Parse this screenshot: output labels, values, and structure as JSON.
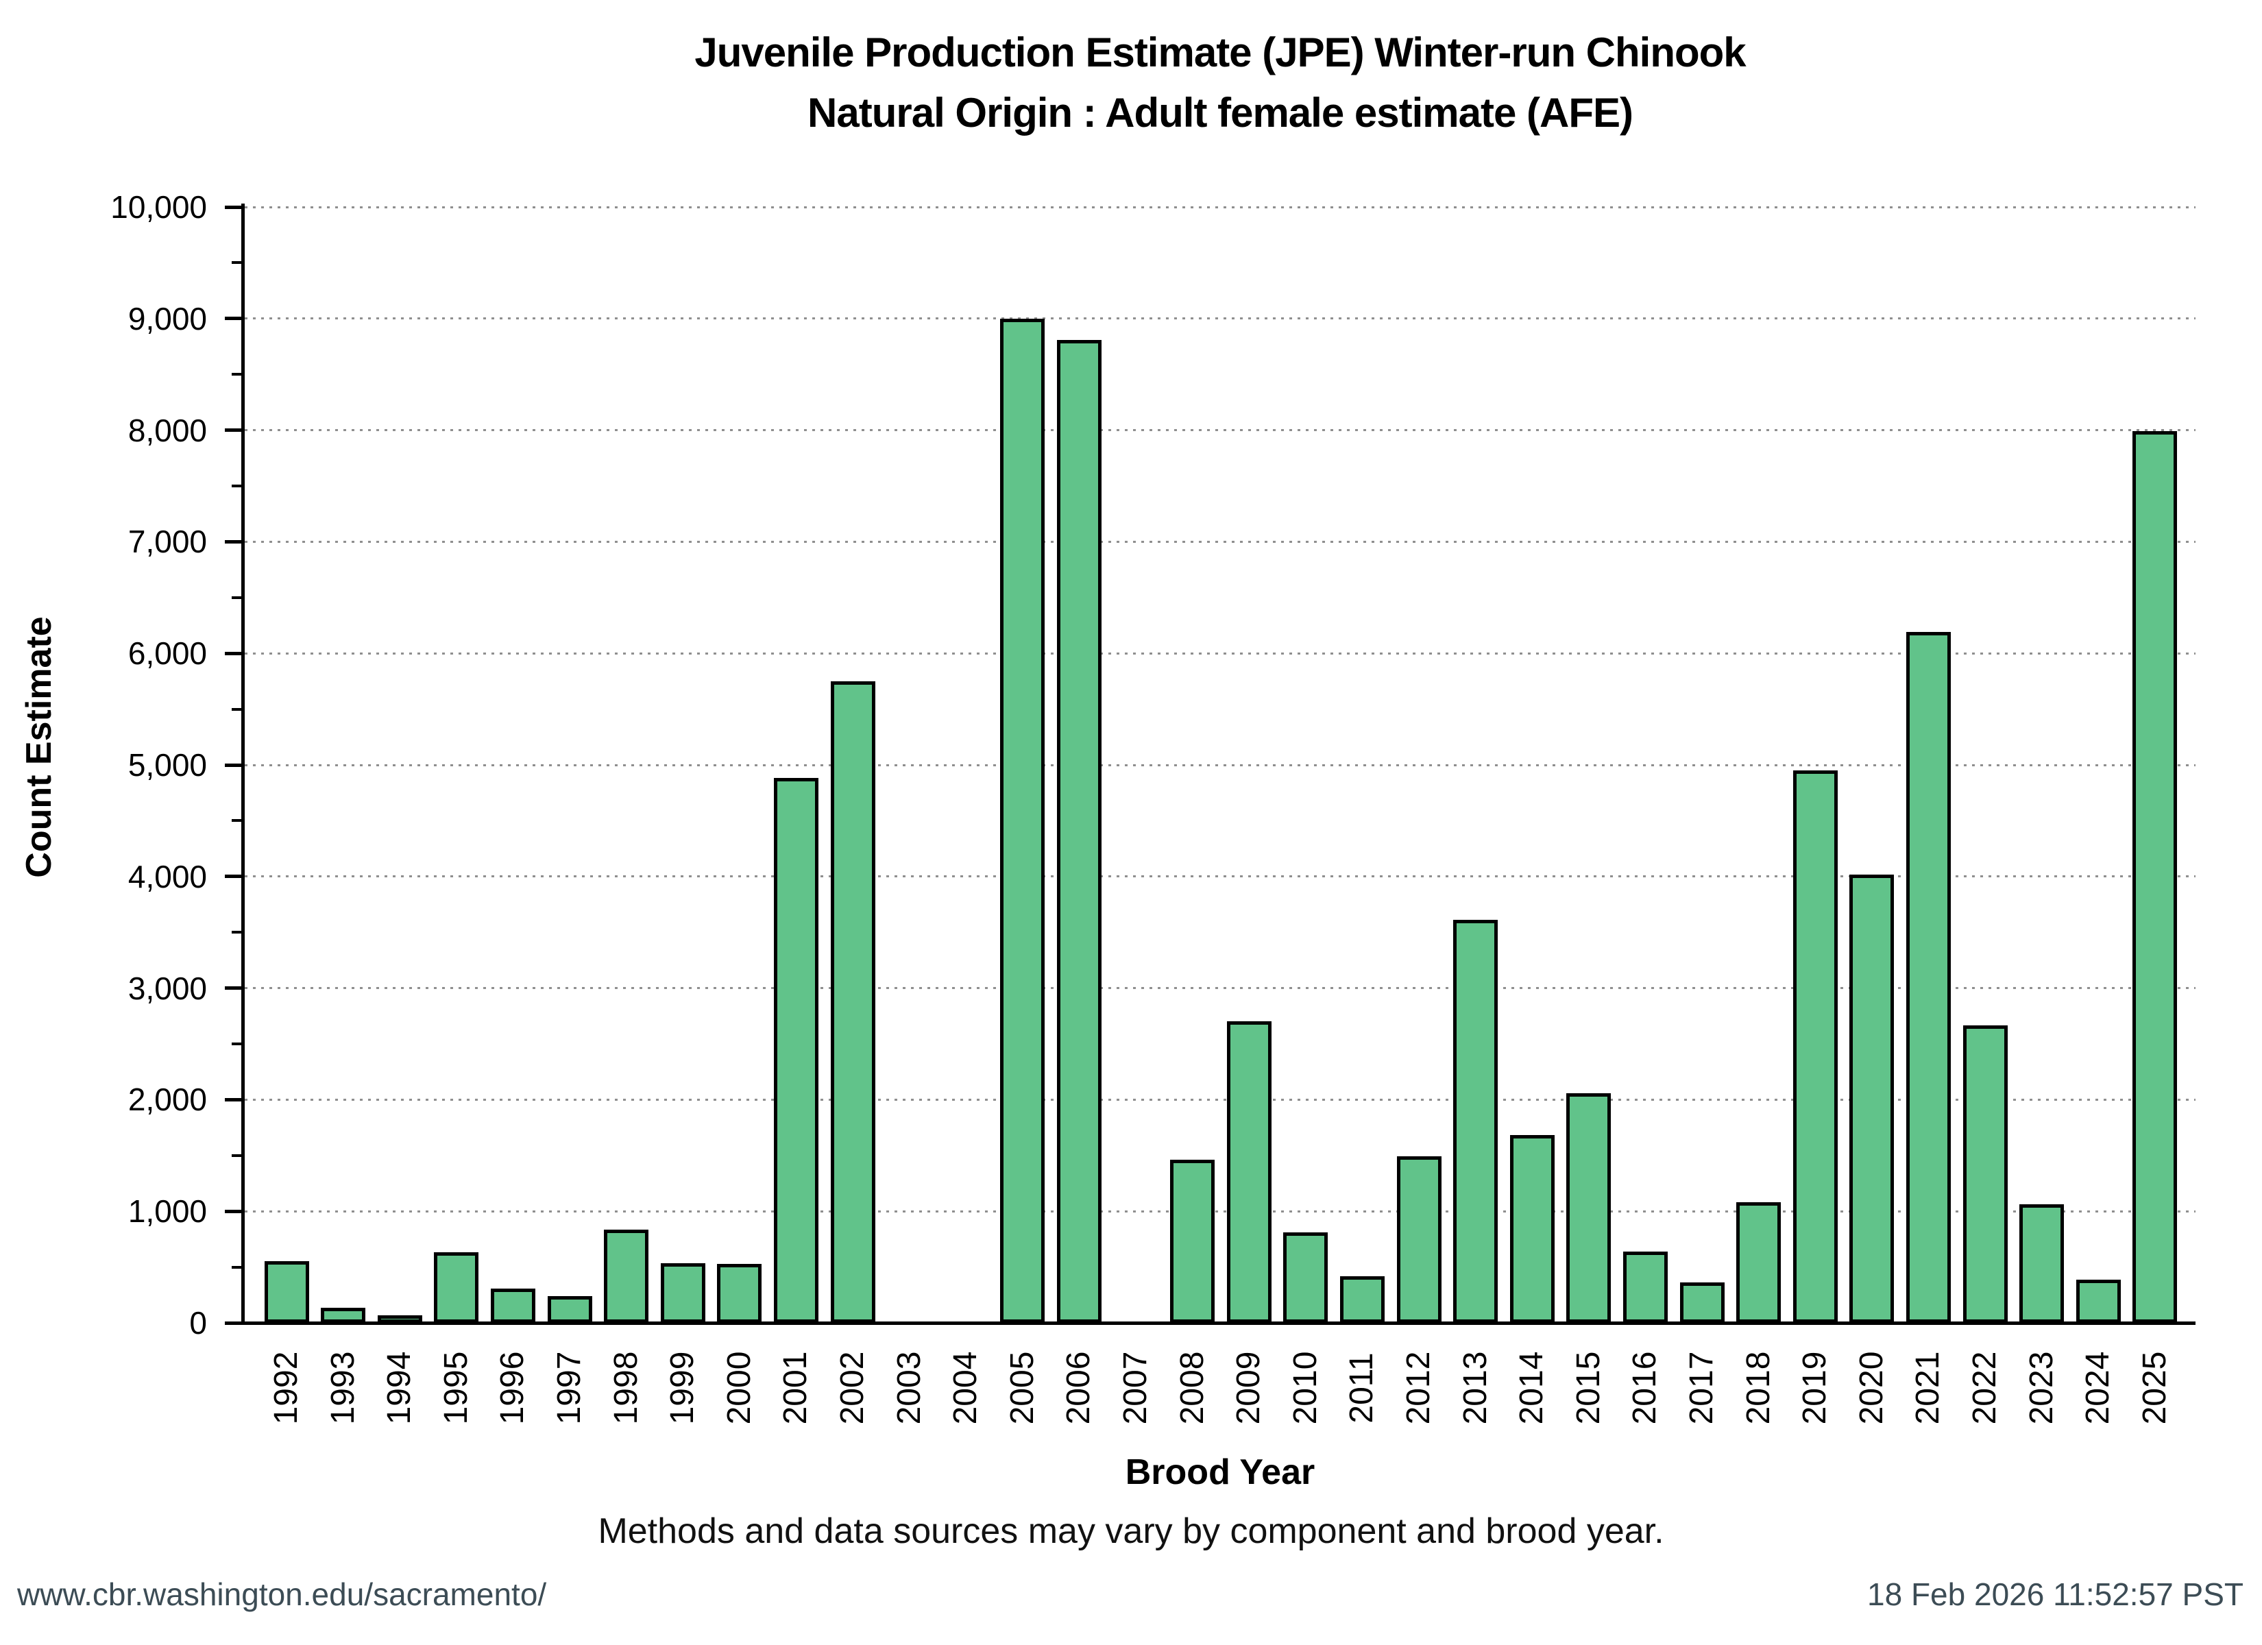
{
  "header": {
    "title_line1": "Juvenile Production Estimate (JPE) Winter-run Chinook",
    "title_line2": "Natural Origin : Adult female estimate (AFE)"
  },
  "chart_data": {
    "type": "bar",
    "title": "Juvenile Production Estimate (JPE) Winter-run Chinook — Natural Origin : Adult female estimate (AFE)",
    "xlabel": "Brood Year",
    "ylabel": "Count Estimate",
    "ylim": [
      0,
      10000
    ],
    "ytick_step": 1000,
    "ytick_labels": [
      "0",
      "1,000",
      "2,000",
      "3,000",
      "4,000",
      "5,000",
      "6,000",
      "7,000",
      "8,000",
      "9,000",
      "10,000"
    ],
    "grid": "horizontal-dotted-major",
    "legend": "none",
    "bar_fill_color": "#61c38a",
    "bar_edge_color": "#000000",
    "gridline_color": "#8f8f8f",
    "categories": [
      1992,
      1993,
      1994,
      1995,
      1996,
      1997,
      1998,
      1999,
      2000,
      2001,
      2002,
      2003,
      2004,
      2005,
      2006,
      2007,
      2008,
      2009,
      2010,
      2011,
      2012,
      2013,
      2014,
      2015,
      2016,
      2017,
      2018,
      2019,
      2020,
      2021,
      2022,
      2023,
      2024,
      2025
    ],
    "values": [
      550,
      135,
      65,
      630,
      310,
      240,
      835,
      535,
      530,
      4885,
      5750,
      0,
      0,
      9000,
      8810,
      0,
      1460,
      2700,
      810,
      415,
      1490,
      3610,
      1680,
      2055,
      640,
      360,
      1080,
      4950,
      4020,
      6190,
      2665,
      1065,
      390,
      7990
    ]
  },
  "note": "Methods and data sources may vary by component and brood year.",
  "footer": {
    "left": "www.cbr.washington.edu/sacramento/",
    "right": "18 Feb 2026 11:52:57 PST"
  }
}
